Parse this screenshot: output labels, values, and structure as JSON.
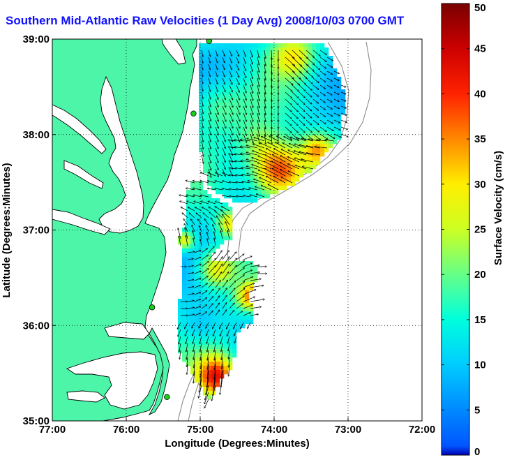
{
  "title": "Southern Mid-Atlantic Raw Velocities (1 Day Avg) 2008/10/03 0700 GMT",
  "colors": {
    "title": "#1010ff",
    "land": "#4cf5a8",
    "coast": "#000000",
    "bathy": "#8a8a8a",
    "station": "#18d018",
    "axis": "#000000"
  },
  "xaxis": {
    "label": "Longitude (Degrees:Minutes)",
    "ticks": [
      "77:00",
      "76:00",
      "75:00",
      "74:00",
      "73:00",
      "72:00"
    ],
    "range_deg": [
      -77,
      -72
    ]
  },
  "yaxis": {
    "label": "Latitude (Degrees:Minutes)",
    "ticks": [
      "39:00",
      "38:00",
      "37:00",
      "36:00",
      "35:00"
    ],
    "range_deg": [
      35,
      39
    ]
  },
  "colorbar": {
    "label": "Surface Velocity (cm/s)",
    "min": 0,
    "max": 50,
    "ticks": [
      "50",
      "45",
      "40",
      "35",
      "30",
      "25",
      "20",
      "15",
      "10",
      "5",
      "0"
    ],
    "colormap": "jet"
  },
  "grid": "dotted",
  "stations_lonlat": [
    [
      -74.88,
      38.98
    ],
    [
      -75.09,
      38.22
    ],
    [
      -75.65,
      36.19
    ],
    [
      -75.45,
      35.25
    ]
  ]
}
